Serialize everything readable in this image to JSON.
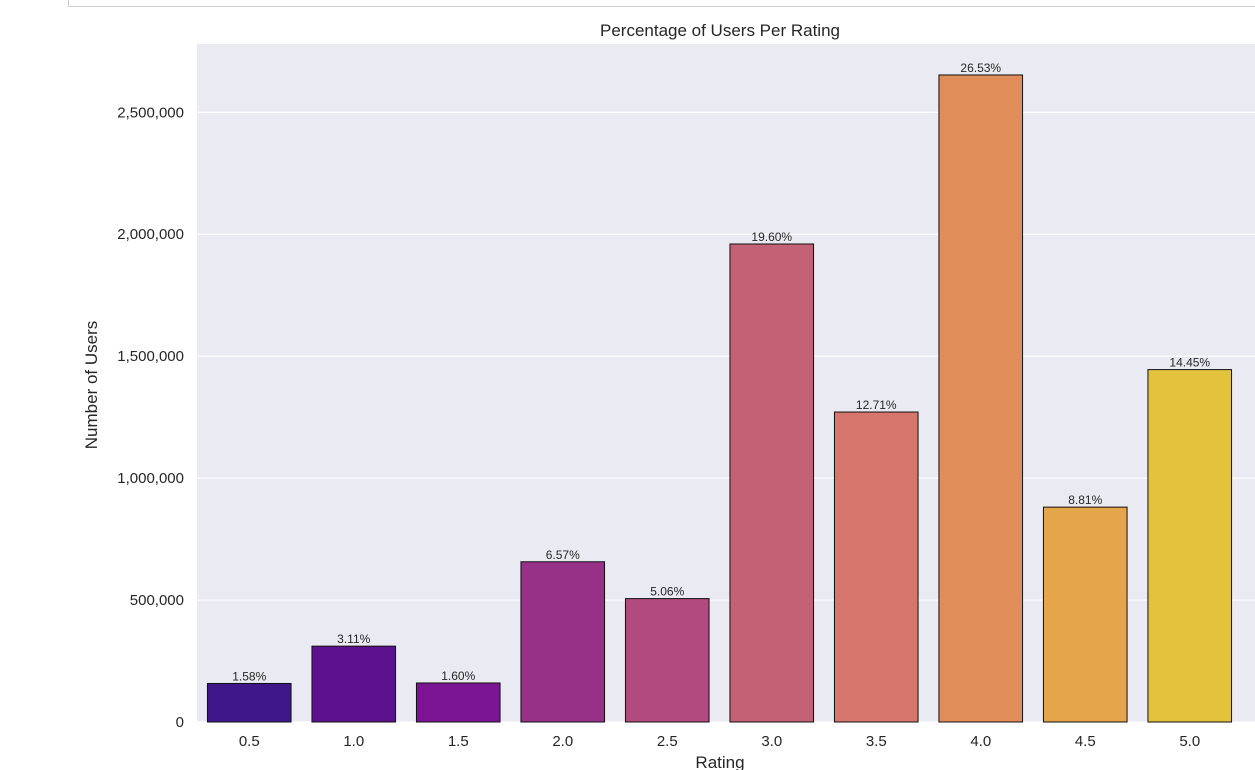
{
  "chart_data": {
    "type": "bar",
    "title": "Percentage of Users Per Rating",
    "xlabel": "Rating",
    "ylabel": "Number of Users",
    "categories": [
      "0.5",
      "1.0",
      "1.5",
      "2.0",
      "2.5",
      "3.0",
      "3.5",
      "4.0",
      "4.5",
      "5.0"
    ],
    "values": [
      158000,
      311000,
      160000,
      657000,
      506000,
      1960000,
      1271000,
      2653000,
      881000,
      1445000
    ],
    "percent_labels": [
      "1.58%",
      "3.11%",
      "1.60%",
      "6.57%",
      "5.06%",
      "19.60%",
      "12.71%",
      "26.53%",
      "8.81%",
      "14.45%"
    ],
    "colors": [
      "#3f178a",
      "#5c118f",
      "#7b1593",
      "#973188",
      "#b04a7f",
      "#c46275",
      "#d6766c",
      "#e08d5a",
      "#e5a54b",
      "#e3c23e"
    ],
    "ylim": [
      0,
      2780000
    ],
    "yticks": [
      0,
      500000,
      1000000,
      1500000,
      2000000,
      2500000
    ],
    "ytick_labels": [
      "0",
      "500,000",
      "1,000,000",
      "1,500,000",
      "2,000,000",
      "2,500,000"
    ],
    "grid": true,
    "background": "#eaeaf2"
  }
}
